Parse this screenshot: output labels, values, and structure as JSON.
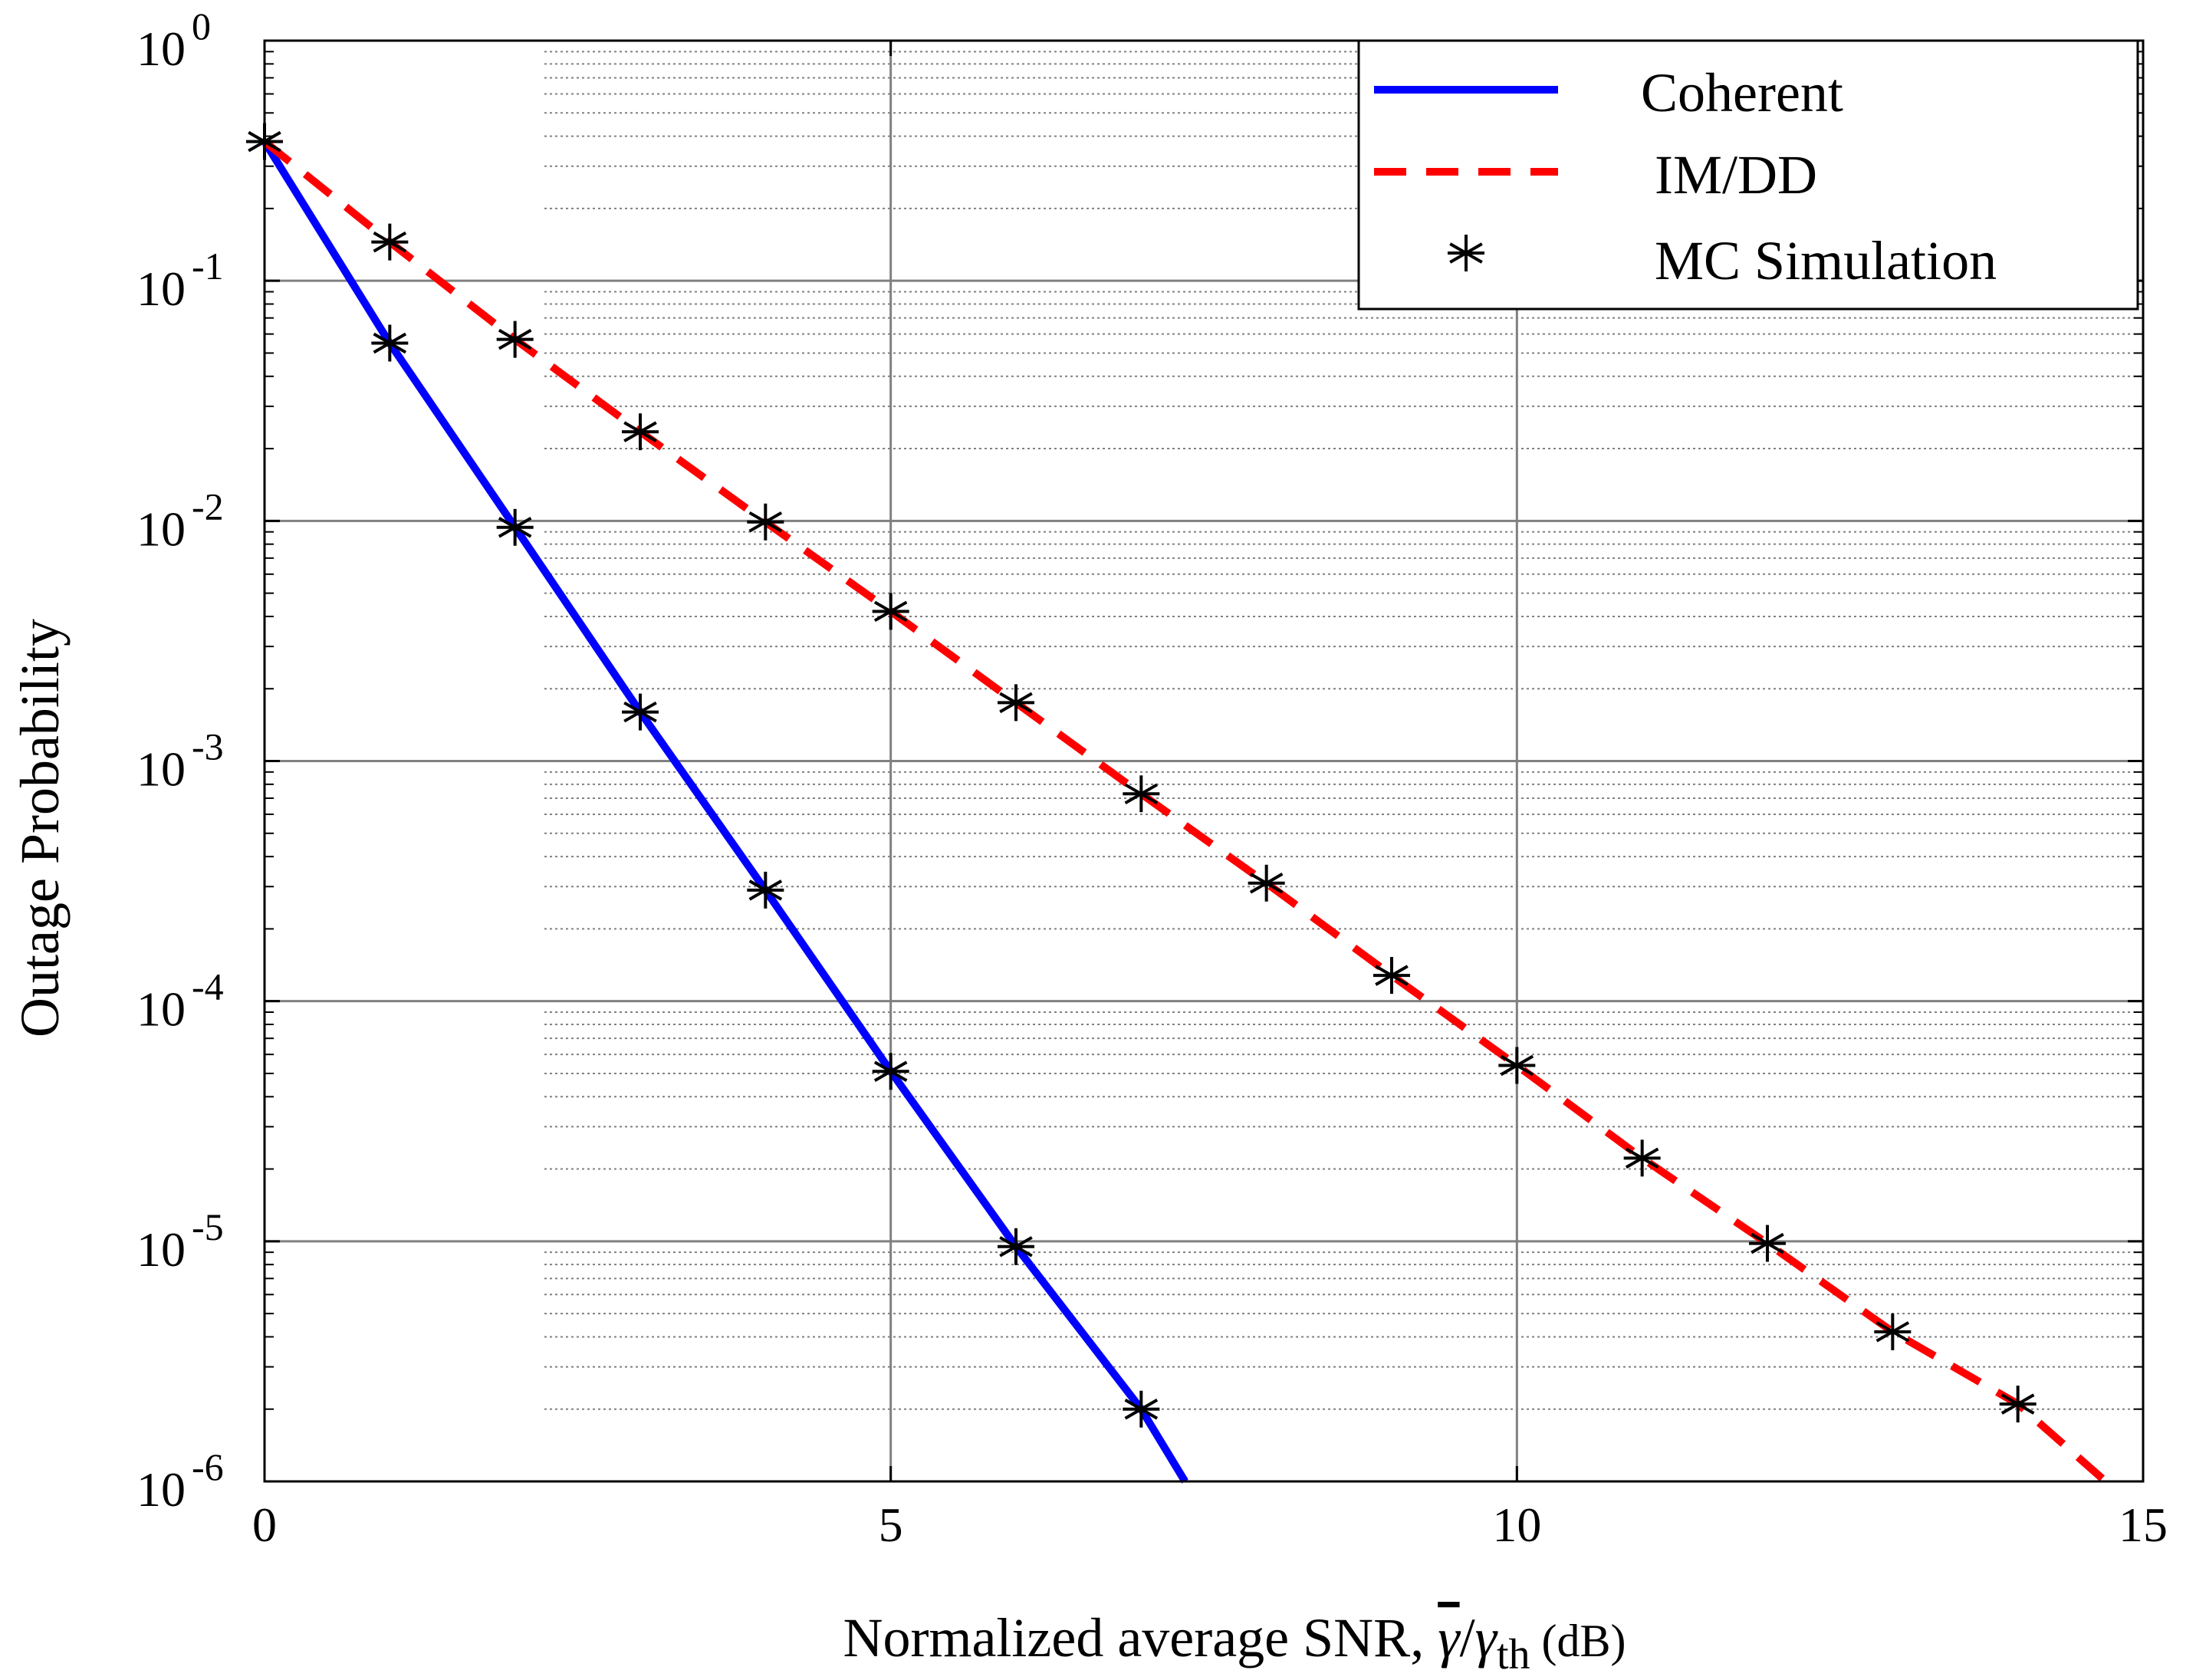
{
  "chart_data": {
    "type": "line",
    "title": "",
    "xlabel": "Normalized average SNR, ",
    "xlabel_symbol": {
      "gamma_bar": "γ",
      "slash": "/",
      "gamma": "γ",
      "sub": "th",
      "unit": " (dB)"
    },
    "ylabel": "Outage Probability",
    "xlim": [
      0,
      15
    ],
    "ylim": [
      1e-06,
      1
    ],
    "yscale": "log",
    "grid": true,
    "x_ticks": [
      0,
      5,
      10,
      15
    ],
    "x_tick_labels": [
      "0",
      "5",
      "10",
      "15"
    ],
    "y_ticks": [
      1,
      0.1,
      0.01,
      0.001,
      0.0001,
      1e-05,
      1e-06
    ],
    "y_tick_labels": [
      {
        "base": "10",
        "exp": "0"
      },
      {
        "base": "10",
        "exp": "-1"
      },
      {
        "base": "10",
        "exp": "-2"
      },
      {
        "base": "10",
        "exp": "-3"
      },
      {
        "base": "10",
        "exp": "-4"
      },
      {
        "base": "10",
        "exp": "-5"
      },
      {
        "base": "10",
        "exp": "-6"
      }
    ],
    "legend_position": "top-right",
    "series": [
      {
        "name": "Coherent",
        "style": "solid",
        "color": "#0000ff",
        "x": [
          0,
          1,
          2,
          3,
          4,
          5,
          6,
          7,
          7.35
        ],
        "y": [
          0.38,
          0.055,
          0.0094,
          0.0016,
          0.00029,
          5.1e-05,
          9.5e-06,
          2e-06,
          1e-06
        ]
      },
      {
        "name": "IM/DD",
        "style": "dashed",
        "color": "#ff0000",
        "x": [
          0,
          1,
          2,
          3,
          4,
          5,
          6,
          7,
          8,
          9,
          10,
          11,
          12,
          13,
          14,
          14.7
        ],
        "y": [
          0.38,
          0.145,
          0.057,
          0.0235,
          0.0099,
          0.0042,
          0.00175,
          0.00073,
          0.00031,
          0.000128,
          5.4e-05,
          2.22e-05,
          9.8e-06,
          4.2e-06,
          2.1e-06,
          1e-06
        ]
      },
      {
        "name": "MC Simulation",
        "style": "markers",
        "marker": "asterisk",
        "color": "#000000",
        "points": [
          [
            0,
            0.38
          ],
          [
            1,
            0.145
          ],
          [
            2,
            0.057
          ],
          [
            3,
            0.0235
          ],
          [
            4,
            0.0099
          ],
          [
            5,
            0.0042
          ],
          [
            6,
            0.00175
          ],
          [
            7,
            0.00073
          ],
          [
            8,
            0.00031
          ],
          [
            9,
            0.000128
          ],
          [
            10,
            5.4e-05
          ],
          [
            11,
            2.22e-05
          ],
          [
            12,
            9.8e-06
          ],
          [
            13,
            4.2e-06
          ],
          [
            14,
            2.1e-06
          ],
          [
            1,
            0.055
          ],
          [
            2,
            0.0094
          ],
          [
            3,
            0.0016
          ],
          [
            4,
            0.00029
          ],
          [
            5,
            5.1e-05
          ],
          [
            6,
            9.5e-06
          ],
          [
            7,
            2e-06
          ]
        ]
      }
    ]
  }
}
